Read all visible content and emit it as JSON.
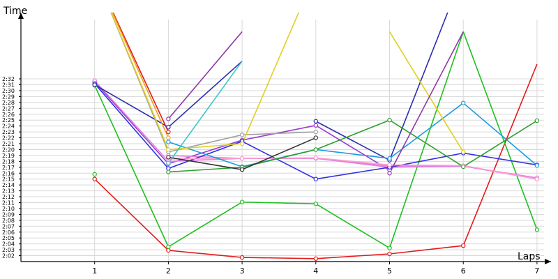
{
  "chart_data": {
    "type": "line",
    "xlabel": "Laps",
    "ylabel": "Time",
    "x": [
      1,
      2,
      3,
      4,
      5,
      6,
      7
    ],
    "xlim": [
      0,
      7
    ],
    "ylim": [
      121,
      152
    ],
    "y_tick_values": [
      122,
      123,
      124,
      125,
      126,
      127,
      128,
      129,
      130,
      131,
      132,
      133,
      134,
      135,
      136,
      137,
      138,
      139,
      140,
      141,
      142,
      143,
      144,
      145,
      146,
      147,
      148,
      149,
      150,
      151,
      152
    ],
    "y_tick_labels": [
      "2:02",
      "2:03",
      "2:04",
      "2:05",
      "2:06",
      "2:07",
      "2:08",
      "2:09",
      "2:10",
      "2:11",
      "2:12",
      "2:13",
      "2:14",
      "2:15",
      "2:16",
      "2:17",
      "2:18",
      "2:19",
      "2:20",
      "2:21",
      "2:22",
      "2:23",
      "2:24",
      "2:25",
      "2:26",
      "2:27",
      "2:28",
      "2:29",
      "2:30",
      "2:31",
      "2:32"
    ],
    "grid": true,
    "series": [
      {
        "color": "#e41a1a",
        "values": [
          135.0,
          122.9,
          121.7,
          121.5,
          122.3,
          123.7,
          154.5
        ]
      },
      {
        "color": "#1fc01f",
        "values": [
          150.9,
          123.5,
          131.1,
          130.8,
          123.3,
          160.0,
          126.4
        ]
      },
      {
        "color": "#1fc01f",
        "values": [
          135.8,
          null,
          null,
          null,
          null,
          null,
          null
        ]
      },
      {
        "color": "#9a3ad0",
        "values": [
          151.5,
          137.6,
          141.6,
          144.1,
          136.5,
          null,
          null
        ]
      },
      {
        "color": "#e080e0",
        "values": [
          151.7,
          138.0,
          138.5,
          138.5,
          137.0,
          137.2,
          135.0
        ]
      },
      {
        "color": "#e080e0",
        "values": [
          null,
          139.0,
          138.5,
          138.5,
          137.2,
          137.2,
          135.2
        ]
      },
      {
        "color": "#3030e0",
        "values": [
          151.2,
          136.8,
          141.4,
          135.0,
          137.0,
          139.4,
          137.4
        ]
      },
      {
        "color": "#2d2db0",
        "values": [
          151.0,
          143.8,
          155.0,
          null,
          null,
          null,
          null
        ]
      },
      {
        "color": "#2d2db0",
        "values": [
          null,
          null,
          null,
          144.8,
          138.2,
          170.0,
          null
        ]
      },
      {
        "color": "#ff9dcf",
        "values": [
          null,
          138.4,
          138.5,
          138.6,
          137.4,
          137.3,
          135.0
        ]
      },
      {
        "color": "#1a9cdc",
        "values": [
          null,
          141.3,
          137.1,
          140.0,
          138.5,
          147.9,
          137.3
        ]
      },
      {
        "color": "#2da02d",
        "values": [
          null,
          136.2,
          137.0,
          140.0,
          145.0,
          137.1,
          144.9
        ]
      },
      {
        "color": "#333333",
        "values": [
          null,
          138.7,
          136.6,
          142.0,
          null,
          null,
          null
        ]
      },
      {
        "color": "#a0a0a0",
        "values": [
          170.0,
          139.6,
          142.5,
          143.0,
          null,
          null,
          null
        ]
      },
      {
        "color": "#e0d020",
        "values": [
          170.0,
          140.0,
          141.0,
          170.0,
          null,
          null,
          null
        ]
      },
      {
        "color": "#e0d020",
        "values": [
          null,
          null,
          null,
          null,
          160.0,
          139.6,
          null
        ]
      },
      {
        "color": "#3ac8c8",
        "values": [
          null,
          137.7,
          155.0,
          null,
          null,
          null,
          null
        ]
      },
      {
        "color": "#8e3aa8",
        "values": [
          null,
          145.2,
          160.0,
          null,
          136.0,
          160.0,
          null
        ]
      },
      {
        "color": "#e41a1a",
        "values": [
          170.0,
          143.0,
          null,
          null,
          null,
          null,
          null
        ]
      },
      {
        "color": "#f0a020",
        "values": [
          170.0,
          142.0,
          null,
          null,
          null,
          null,
          null
        ]
      }
    ]
  }
}
